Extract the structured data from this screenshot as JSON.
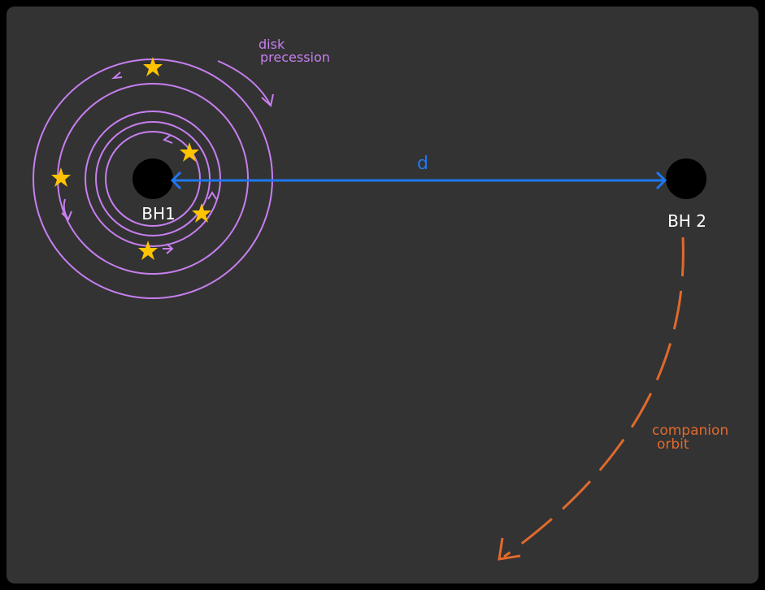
{
  "annotations": {
    "disk_precession": [
      "disk",
      "precession"
    ],
    "distance": "d",
    "bh1": "BH1",
    "bh2": "BH 2",
    "companion_orbit": [
      "companion",
      "orbit"
    ]
  }
}
